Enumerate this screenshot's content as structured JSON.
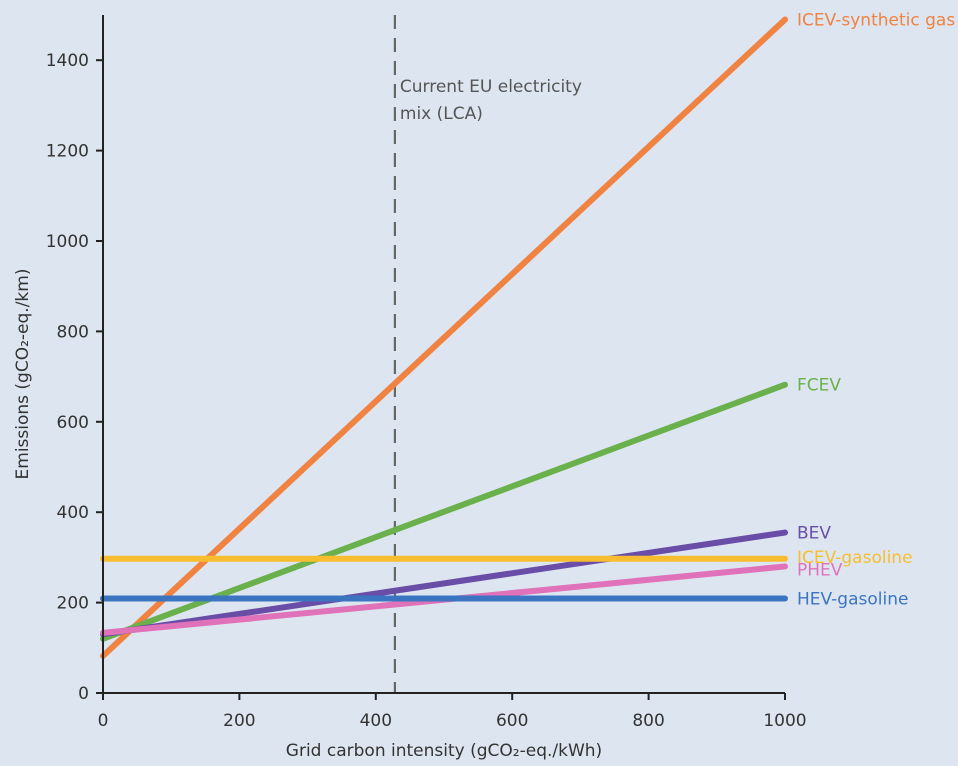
{
  "chart_data": {
    "type": "line",
    "title": "",
    "xlabel": "Grid carbon intensity (gCO₂-eq./kWh)",
    "ylabel": "Emissions (gCO₂-eq./km)",
    "xlim": [
      0,
      1000
    ],
    "ylim": [
      0,
      1500
    ],
    "xticks": [
      0,
      200,
      400,
      600,
      800,
      1000
    ],
    "yticks": [
      0,
      200,
      400,
      600,
      800,
      1000,
      1200,
      1400
    ],
    "grid": false,
    "legend": "direct labels at line ends",
    "reference_line": {
      "x": 428,
      "label_lines": [
        "Current EU electricity",
        "mix (LCA)"
      ],
      "color": "#666666"
    },
    "series": [
      {
        "name": "ICEV-synthetic gas",
        "color": "#f08242",
        "x": [
          0,
          1000
        ],
        "y": [
          82,
          1490
        ]
      },
      {
        "name": "FCEV",
        "color": "#6ab04c",
        "x": [
          0,
          1000
        ],
        "y": [
          120,
          682
        ]
      },
      {
        "name": "BEV",
        "color": "#6a4da6",
        "x": [
          0,
          1000
        ],
        "y": [
          130,
          355
        ]
      },
      {
        "name": "ICEV-gasoline",
        "color": "#f8bd2e",
        "x": [
          0,
          1000
        ],
        "y": [
          297,
          297
        ]
      },
      {
        "name": "PHEV",
        "color": "#df72b8",
        "x": [
          0,
          1000
        ],
        "y": [
          133,
          280
        ]
      },
      {
        "name": "HEV-gasoline",
        "color": "#3b75c2",
        "x": [
          0,
          1000
        ],
        "y": [
          209,
          209
        ]
      }
    ]
  }
}
